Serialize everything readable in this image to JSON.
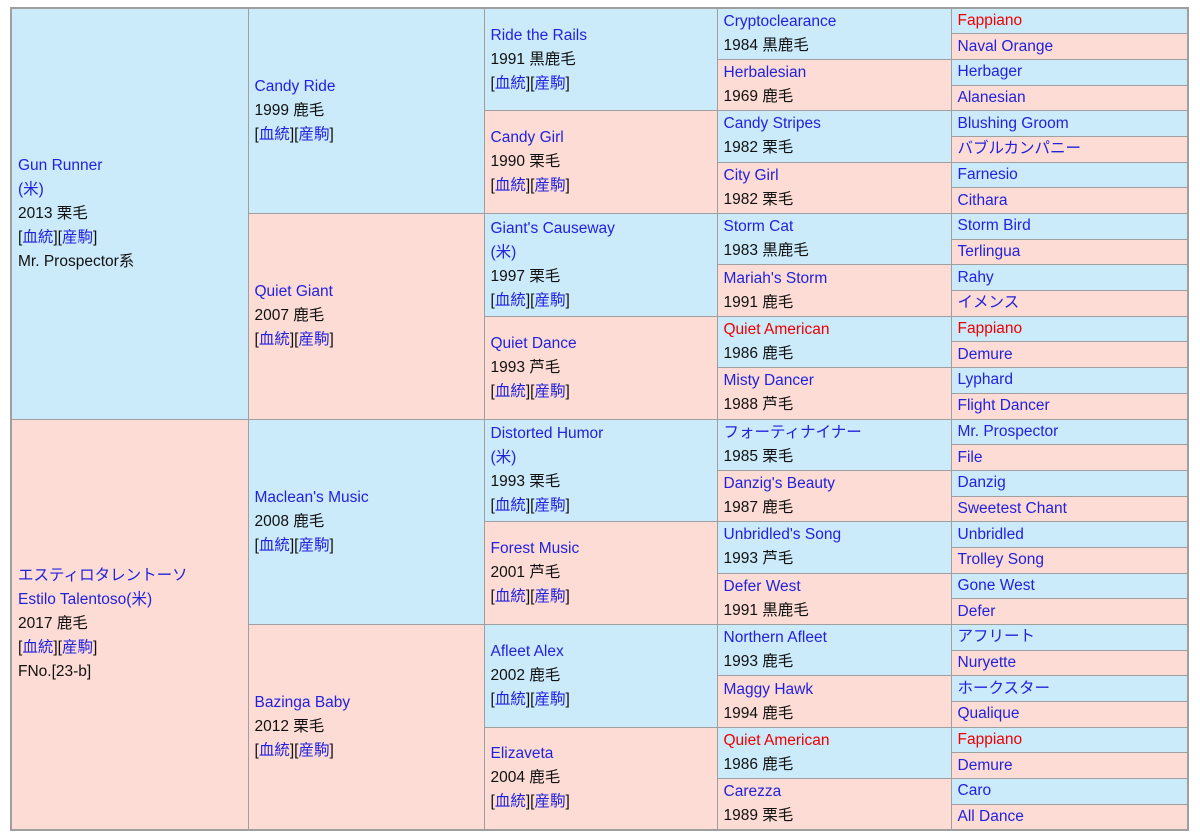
{
  "table": {
    "colors": {
      "male_bg": "#cbeafa",
      "female_bg": "#fcdcd4",
      "border": "#9f9f9f",
      "link": "#2222dd",
      "red": "#ee0000",
      "text": "#111111",
      "page_bg": "#ffffff"
    },
    "link_labels": {
      "open": "[",
      "close": "]",
      "pedigree": "血統",
      "offspring": "産駒"
    },
    "generations": [
      {
        "span": 16,
        "cells": [
          {
            "sex": "m",
            "lines": [
              {
                "c": "link",
                "t": "Gun Runner"
              },
              {
                "c": "link",
                "t": "(米)"
              },
              {
                "c": "plain",
                "t": "2013 栗毛"
              },
              {
                "c": "links"
              },
              {
                "c": "plain",
                "t": "Mr. Prospector系"
              }
            ]
          },
          {
            "sex": "f",
            "lines": [
              {
                "c": "link",
                "t": "エスティロタレントーソ"
              },
              {
                "c": "link",
                "t": "Estilo Talentoso(米)"
              },
              {
                "c": "plain",
                "t": "2017 鹿毛"
              },
              {
                "c": "links"
              },
              {
                "c": "plain",
                "t": "FNo.[23-b]"
              }
            ]
          }
        ]
      },
      {
        "span": 8,
        "cells": [
          {
            "sex": "m",
            "lines": [
              {
                "c": "link",
                "t": "Candy Ride"
              },
              {
                "c": "plain",
                "t": "1999 鹿毛"
              },
              {
                "c": "links"
              }
            ]
          },
          {
            "sex": "f",
            "lines": [
              {
                "c": "link",
                "t": "Quiet Giant"
              },
              {
                "c": "plain",
                "t": "2007 鹿毛"
              },
              {
                "c": "links"
              }
            ]
          },
          {
            "sex": "m",
            "lines": [
              {
                "c": "link",
                "t": "Maclean's Music"
              },
              {
                "c": "plain",
                "t": "2008 鹿毛"
              },
              {
                "c": "links"
              }
            ]
          },
          {
            "sex": "f",
            "lines": [
              {
                "c": "link",
                "t": "Bazinga Baby"
              },
              {
                "c": "plain",
                "t": "2012 栗毛"
              },
              {
                "c": "links"
              }
            ]
          }
        ]
      },
      {
        "span": 4,
        "cells": [
          {
            "sex": "m",
            "lines": [
              {
                "c": "link",
                "t": "Ride the Rails"
              },
              {
                "c": "plain",
                "t": "1991 黒鹿毛"
              },
              {
                "c": "links"
              }
            ]
          },
          {
            "sex": "f",
            "lines": [
              {
                "c": "link",
                "t": "Candy Girl"
              },
              {
                "c": "plain",
                "t": "1990 栗毛"
              },
              {
                "c": "links"
              }
            ]
          },
          {
            "sex": "m",
            "lines": [
              {
                "c": "link",
                "t": "Giant's Causeway"
              },
              {
                "c": "link",
                "t": "(米)"
              },
              {
                "c": "plain",
                "t": "1997 栗毛"
              },
              {
                "c": "links"
              }
            ]
          },
          {
            "sex": "f",
            "lines": [
              {
                "c": "link",
                "t": "Quiet Dance"
              },
              {
                "c": "plain",
                "t": "1993 芦毛"
              },
              {
                "c": "links"
              }
            ]
          },
          {
            "sex": "m",
            "lines": [
              {
                "c": "link",
                "t": "Distorted Humor"
              },
              {
                "c": "link",
                "t": "(米)"
              },
              {
                "c": "plain",
                "t": "1993 栗毛"
              },
              {
                "c": "links"
              }
            ]
          },
          {
            "sex": "f",
            "lines": [
              {
                "c": "link",
                "t": "Forest Music"
              },
              {
                "c": "plain",
                "t": "2001 芦毛"
              },
              {
                "c": "links"
              }
            ]
          },
          {
            "sex": "m",
            "lines": [
              {
                "c": "link",
                "t": "Afleet Alex"
              },
              {
                "c": "plain",
                "t": "2002 鹿毛"
              },
              {
                "c": "links"
              }
            ]
          },
          {
            "sex": "f",
            "lines": [
              {
                "c": "link",
                "t": "Elizaveta"
              },
              {
                "c": "plain",
                "t": "2004 鹿毛"
              },
              {
                "c": "links"
              }
            ]
          }
        ]
      },
      {
        "span": 2,
        "cells": [
          {
            "sex": "m",
            "lines": [
              {
                "c": "link",
                "t": "Cryptoclearance"
              },
              {
                "c": "plain",
                "t": "1984 黒鹿毛"
              }
            ]
          },
          {
            "sex": "f",
            "lines": [
              {
                "c": "link",
                "t": "Herbalesian"
              },
              {
                "c": "plain",
                "t": "1969 鹿毛"
              }
            ]
          },
          {
            "sex": "m",
            "lines": [
              {
                "c": "link",
                "t": "Candy Stripes"
              },
              {
                "c": "plain",
                "t": "1982 栗毛"
              }
            ]
          },
          {
            "sex": "f",
            "lines": [
              {
                "c": "link",
                "t": "City Girl"
              },
              {
                "c": "plain",
                "t": "1982 栗毛"
              }
            ]
          },
          {
            "sex": "m",
            "lines": [
              {
                "c": "link",
                "t": "Storm Cat"
              },
              {
                "c": "plain",
                "t": "1983 黒鹿毛"
              }
            ]
          },
          {
            "sex": "f",
            "lines": [
              {
                "c": "link",
                "t": "Mariah's Storm"
              },
              {
                "c": "plain",
                "t": "1991 鹿毛"
              }
            ]
          },
          {
            "sex": "m",
            "lines": [
              {
                "c": "red",
                "t": "Quiet American"
              },
              {
                "c": "plain",
                "t": "1986 鹿毛"
              }
            ]
          },
          {
            "sex": "f",
            "lines": [
              {
                "c": "link",
                "t": "Misty Dancer"
              },
              {
                "c": "plain",
                "t": "1988 芦毛"
              }
            ]
          },
          {
            "sex": "m",
            "lines": [
              {
                "c": "link",
                "t": "フォーティナイナー"
              },
              {
                "c": "plain",
                "t": "1985 栗毛"
              }
            ]
          },
          {
            "sex": "f",
            "lines": [
              {
                "c": "link",
                "t": "Danzig's Beauty"
              },
              {
                "c": "plain",
                "t": "1987 鹿毛"
              }
            ]
          },
          {
            "sex": "m",
            "lines": [
              {
                "c": "link",
                "t": "Unbridled's Song"
              },
              {
                "c": "plain",
                "t": "1993 芦毛"
              }
            ]
          },
          {
            "sex": "f",
            "lines": [
              {
                "c": "link",
                "t": "Defer West"
              },
              {
                "c": "plain",
                "t": "1991 黒鹿毛"
              }
            ]
          },
          {
            "sex": "m",
            "lines": [
              {
                "c": "link",
                "t": "Northern Afleet"
              },
              {
                "c": "plain",
                "t": "1993 鹿毛"
              }
            ]
          },
          {
            "sex": "f",
            "lines": [
              {
                "c": "link",
                "t": "Maggy Hawk"
              },
              {
                "c": "plain",
                "t": "1994 鹿毛"
              }
            ]
          },
          {
            "sex": "m",
            "lines": [
              {
                "c": "red",
                "t": "Quiet American"
              },
              {
                "c": "plain",
                "t": "1986 鹿毛"
              }
            ]
          },
          {
            "sex": "f",
            "lines": [
              {
                "c": "link",
                "t": "Carezza"
              },
              {
                "c": "plain",
                "t": "1989 栗毛"
              }
            ]
          }
        ]
      },
      {
        "span": 1,
        "cells": [
          {
            "sex": "m",
            "lines": [
              {
                "c": "red",
                "t": "Fappiano"
              }
            ]
          },
          {
            "sex": "f",
            "lines": [
              {
                "c": "link",
                "t": "Naval Orange"
              }
            ]
          },
          {
            "sex": "m",
            "lines": [
              {
                "c": "link",
                "t": "Herbager"
              }
            ]
          },
          {
            "sex": "f",
            "lines": [
              {
                "c": "link",
                "t": "Alanesian"
              }
            ]
          },
          {
            "sex": "m",
            "lines": [
              {
                "c": "link",
                "t": "Blushing Groom"
              }
            ]
          },
          {
            "sex": "f",
            "lines": [
              {
                "c": "link",
                "t": "バブルカンパニー"
              }
            ]
          },
          {
            "sex": "m",
            "lines": [
              {
                "c": "link",
                "t": "Farnesio"
              }
            ]
          },
          {
            "sex": "f",
            "lines": [
              {
                "c": "link",
                "t": "Cithara"
              }
            ]
          },
          {
            "sex": "m",
            "lines": [
              {
                "c": "link",
                "t": "Storm Bird"
              }
            ]
          },
          {
            "sex": "f",
            "lines": [
              {
                "c": "link",
                "t": "Terlingua"
              }
            ]
          },
          {
            "sex": "m",
            "lines": [
              {
                "c": "link",
                "t": "Rahy"
              }
            ]
          },
          {
            "sex": "f",
            "lines": [
              {
                "c": "link",
                "t": "イメンス"
              }
            ]
          },
          {
            "sex": "m",
            "lines": [
              {
                "c": "red",
                "t": "Fappiano"
              }
            ]
          },
          {
            "sex": "f",
            "lines": [
              {
                "c": "link",
                "t": "Demure"
              }
            ]
          },
          {
            "sex": "m",
            "lines": [
              {
                "c": "link",
                "t": "Lyphard"
              }
            ]
          },
          {
            "sex": "f",
            "lines": [
              {
                "c": "link",
                "t": "Flight Dancer"
              }
            ]
          },
          {
            "sex": "m",
            "lines": [
              {
                "c": "link",
                "t": "Mr. Prospector"
              }
            ]
          },
          {
            "sex": "f",
            "lines": [
              {
                "c": "link",
                "t": "File"
              }
            ]
          },
          {
            "sex": "m",
            "lines": [
              {
                "c": "link",
                "t": "Danzig"
              }
            ]
          },
          {
            "sex": "f",
            "lines": [
              {
                "c": "link",
                "t": "Sweetest Chant"
              }
            ]
          },
          {
            "sex": "m",
            "lines": [
              {
                "c": "link",
                "t": "Unbridled"
              }
            ]
          },
          {
            "sex": "f",
            "lines": [
              {
                "c": "link",
                "t": "Trolley Song"
              }
            ]
          },
          {
            "sex": "m",
            "lines": [
              {
                "c": "link",
                "t": "Gone West"
              }
            ]
          },
          {
            "sex": "f",
            "lines": [
              {
                "c": "link",
                "t": "Defer"
              }
            ]
          },
          {
            "sex": "m",
            "lines": [
              {
                "c": "link",
                "t": "アフリート"
              }
            ]
          },
          {
            "sex": "f",
            "lines": [
              {
                "c": "link",
                "t": "Nuryette"
              }
            ]
          },
          {
            "sex": "m",
            "lines": [
              {
                "c": "link",
                "t": "ホークスター"
              }
            ]
          },
          {
            "sex": "f",
            "lines": [
              {
                "c": "link",
                "t": "Qualique"
              }
            ]
          },
          {
            "sex": "m",
            "lines": [
              {
                "c": "red",
                "t": "Fappiano"
              }
            ]
          },
          {
            "sex": "f",
            "lines": [
              {
                "c": "link",
                "t": "Demure"
              }
            ]
          },
          {
            "sex": "m",
            "lines": [
              {
                "c": "link",
                "t": "Caro"
              }
            ]
          },
          {
            "sex": "f",
            "lines": [
              {
                "c": "link",
                "t": "All Dance"
              }
            ]
          }
        ]
      }
    ]
  }
}
